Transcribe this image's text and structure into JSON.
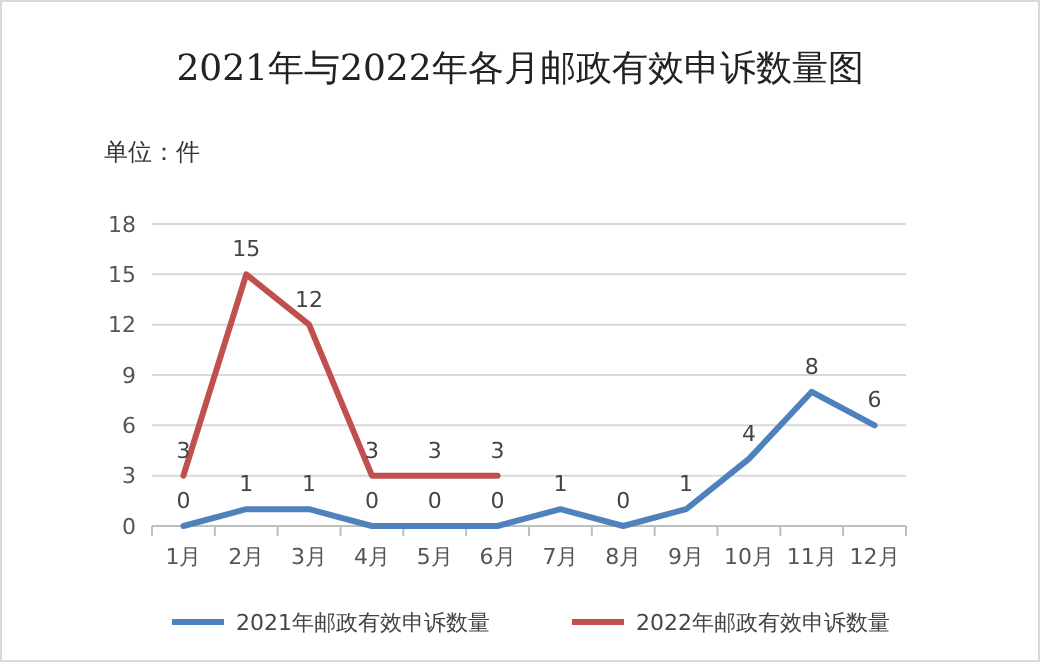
{
  "chart_data": {
    "type": "line",
    "title": "2021年与2022年各月邮政有效申诉数量图",
    "ylabel": "单位：件",
    "categories": [
      "1月",
      "2月",
      "3月",
      "4月",
      "5月",
      "6月",
      "7月",
      "8月",
      "9月",
      "10月",
      "11月",
      "12月"
    ],
    "series": [
      {
        "name": "2021年邮政有效申诉数量",
        "color": "#4f81bd",
        "values": [
          0,
          1,
          1,
          0,
          0,
          0,
          1,
          0,
          1,
          4,
          8,
          6
        ]
      },
      {
        "name": "2022年邮政有效申诉数量",
        "color": "#c0504d",
        "values": [
          3,
          15,
          12,
          3,
          3,
          3,
          null,
          null,
          null,
          null,
          null,
          null
        ]
      }
    ],
    "ylim": [
      0,
      18
    ],
    "yticks": [
      0,
      3,
      6,
      9,
      12,
      15,
      18
    ],
    "grid": "y",
    "legend": "bottom",
    "data_labels": true,
    "marker": "none",
    "line_style": "solid"
  }
}
